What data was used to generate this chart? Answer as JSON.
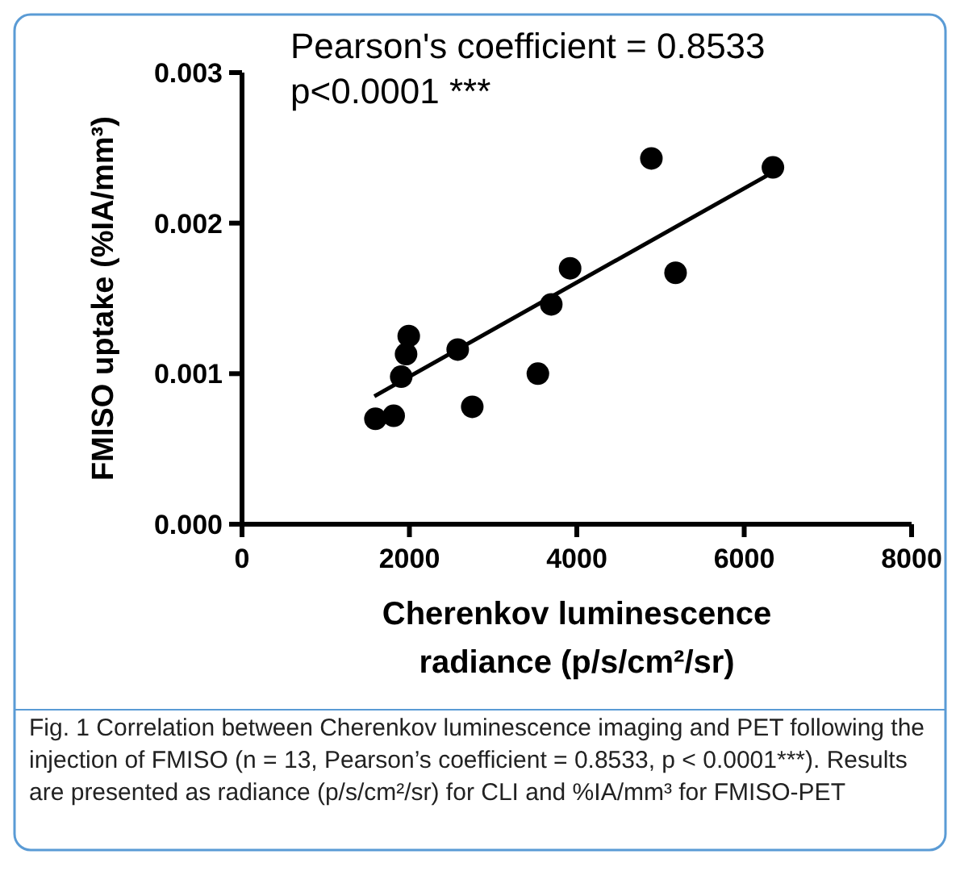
{
  "chart_data": {
    "type": "scatter",
    "xlabel": "Cherenkov luminescence radiance (p/s/cm²/sr)",
    "ylabel": "FMISO uptake (%IA/mm³)",
    "xlim": [
      0,
      8000
    ],
    "xticks": [
      0,
      2000,
      4000,
      6000,
      8000
    ],
    "ylim": [
      0,
      0.003
    ],
    "yticks": [
      {
        "value": 0,
        "label": "0.000"
      },
      {
        "value": 0.001,
        "label": "0.001"
      },
      {
        "value": 0.002,
        "label": "0.002"
      },
      {
        "value": 0.003,
        "label": "0.003"
      }
    ],
    "grid": false,
    "series": [
      {
        "marker": "circle",
        "color": "#000000",
        "x": [
          1594,
          1812,
          1902,
          1960,
          1992,
          2577,
          2751,
          3535,
          3695,
          3920,
          4891,
          5180,
          6343
        ],
        "values": [
          0.0007,
          0.00072,
          0.00098,
          0.00113,
          0.00125,
          0.00116,
          0.00078,
          0.001,
          0.00146,
          0.0017,
          0.00243,
          0.00167,
          0.00237
        ]
      },
      {
        "type": "line",
        "marker": "none",
        "color": "#000000",
        "x": [
          1581,
          6317
        ],
        "values": [
          0.00085,
          0.00233
        ]
      }
    ],
    "annotations": [
      "Pearson's coefficient = 0.8533",
      "p<0.0001 ***",
      "Fig. 1 Correlation between Cherenkov luminescence imaging and PET following the injection of FMISO (n = 13, Pearson’s coefficient = 0.8533, p < 0.0001***). Results are presented as radiance (p/s/cm²/sr) for CLI and %IA/mm³ for FMISO-PET"
    ]
  }
}
